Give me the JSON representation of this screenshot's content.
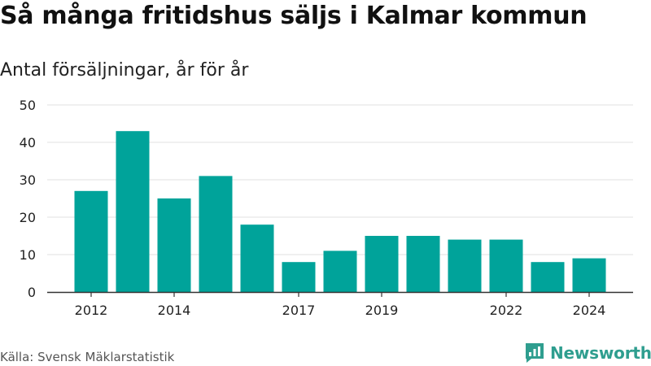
{
  "colors": {
    "bar": "#00a39a",
    "grid": "#e0e0e0",
    "axis": "#333333",
    "brand": "#2f9e8f"
  },
  "source": "Källa: Svensk Mäklarstatistik",
  "logo": {
    "text": "Newsworthy",
    "icon": "bar-chart-speech-icon"
  },
  "chart_data": {
    "type": "bar",
    "title": "Så många fritidshus säljs i Kalmar kommun",
    "subtitle": "Antal försäljningar, år för år",
    "xlabel": "",
    "ylabel": "",
    "categories": [
      "2012",
      "2013",
      "2014",
      "2015",
      "2016",
      "2017",
      "2018",
      "2019",
      "2020",
      "2021",
      "2022",
      "2023",
      "2024"
    ],
    "values": [
      27,
      43,
      25,
      31,
      18,
      8,
      11,
      15,
      15,
      14,
      14,
      8,
      9
    ],
    "x_tick_labels": [
      "2012",
      "2014",
      "2017",
      "2019",
      "2022",
      "2024"
    ],
    "ylim": [
      0,
      50
    ],
    "y_ticks": [
      0,
      10,
      20,
      30,
      40,
      50
    ],
    "grid": true,
    "legend": "none"
  }
}
